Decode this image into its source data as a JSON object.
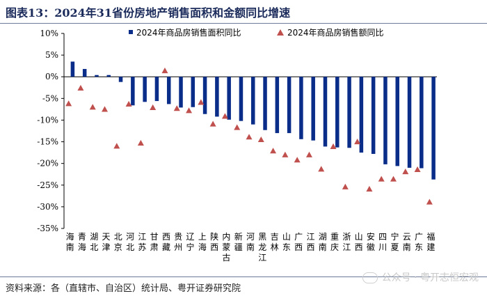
{
  "title": "图表13：2024年31省份房地产销售面积和金额同比增速",
  "source": "资料来源：各（直辖市、自治区）统计局、粤开证券研究院",
  "watermark": "公众号 · 粤开志恒宏观",
  "colors": {
    "bar": "#0b2d8a",
    "marker": "#c0504d",
    "axis": "#000000"
  },
  "chart_data": {
    "type": "bar",
    "categories": [
      "海南",
      "青海",
      "湖北",
      "天津",
      "北京",
      "河北",
      "江苏",
      "甘肃",
      "西藏",
      "贵州",
      "辽宁",
      "上海",
      "陕西",
      "内蒙古",
      "新疆",
      "河南",
      "黑龙江",
      "吉林",
      "山东",
      "广西",
      "江西",
      "湖南",
      "重庆",
      "浙江",
      "山西",
      "安徽",
      "四川",
      "宁夏",
      "云南",
      "广东",
      "福建"
    ],
    "series": [
      {
        "name": "2024年商品房销售面积同比",
        "type": "bar",
        "values": [
          3.5,
          1.8,
          0.4,
          0.4,
          -1.2,
          -6.6,
          -5.8,
          -5.6,
          -6.3,
          -7.1,
          -7.0,
          -8.6,
          -9.2,
          -9.9,
          -10.2,
          -11.0,
          -12.3,
          -13.0,
          -13.0,
          -14.4,
          -14.7,
          -16.1,
          -16.3,
          -16.4,
          -17.5,
          -17.8,
          -20.2,
          -20.6,
          -21.0,
          -21.1,
          -23.7
        ]
      },
      {
        "name": "2024年商品房销售额同比",
        "type": "scatter",
        "marker": "triangle",
        "values": [
          -6.2,
          -2.6,
          -7.0,
          -7.5,
          -16.0,
          -6.3,
          -15.3,
          -7.1,
          1.4,
          -7.3,
          -7.8,
          -5.9,
          -10.9,
          -9.1,
          -11.7,
          -13.9,
          -14.5,
          -17.1,
          -18.0,
          -19.2,
          -18.0,
          -21.3,
          -16.1,
          -25.4,
          -15.0,
          -25.9,
          -23.6,
          -23.6,
          -21.9,
          -21.4,
          -28.9
        ]
      }
    ],
    "y_ticks": [
      "10%",
      "5%",
      "0%",
      "-5%",
      "-10%",
      "-15%",
      "-20%",
      "-25%",
      "-30%",
      "-35%"
    ],
    "ylim": [
      -35,
      10
    ],
    "legend_position": "top",
    "grid": false
  }
}
